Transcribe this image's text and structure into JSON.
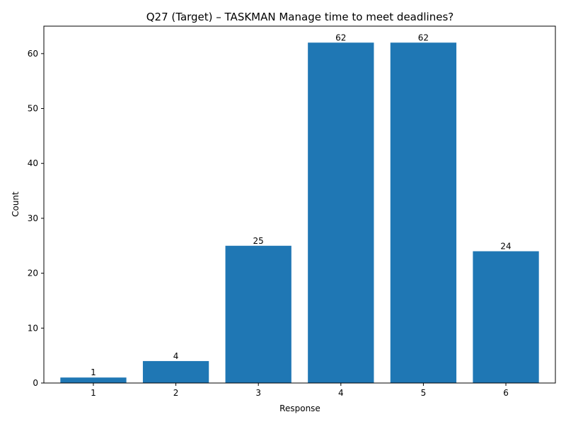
{
  "chart_data": {
    "type": "bar",
    "title": "Q27 (Target) – TASKMAN Manage time to meet deadlines?",
    "xlabel": "Response",
    "ylabel": "Count",
    "categories": [
      "1",
      "2",
      "3",
      "4",
      "5",
      "6"
    ],
    "values": [
      1,
      4,
      25,
      62,
      62,
      24
    ],
    "ylim": [
      0,
      65
    ],
    "yticks": [
      0,
      10,
      20,
      30,
      40,
      50,
      60
    ],
    "bar_color": "#1f77b4",
    "grid": false,
    "legend": "none"
  }
}
